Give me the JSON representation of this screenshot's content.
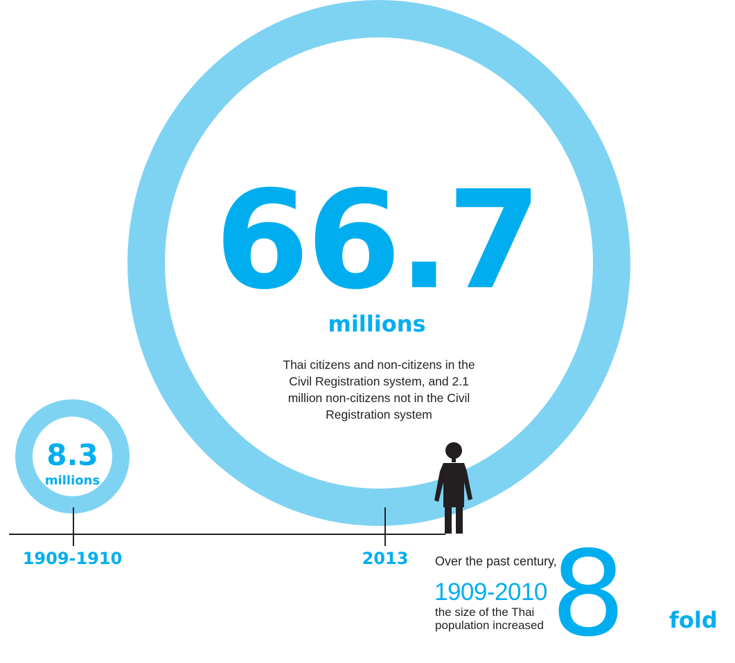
{
  "rings": {
    "current": {
      "value": "66.7",
      "unit": "millions",
      "year": "2013",
      "description": "Thai citizens and non-citizens in the Civil Registration system, and 2.1 million non-citizens not in the Civil Registration system"
    },
    "past": {
      "value": "8.3",
      "unit": "millions",
      "year": "1909-1910"
    }
  },
  "fact": {
    "intro": "Over the past century,",
    "years": "1909-2010",
    "text": "the size of the Thai population increased",
    "number": "8",
    "unit": "fold"
  },
  "colors": {
    "accent": "#00aeef",
    "ring": "#7fd3f2",
    "ink": "#231f20"
  },
  "icons": {
    "person": "person-icon"
  }
}
